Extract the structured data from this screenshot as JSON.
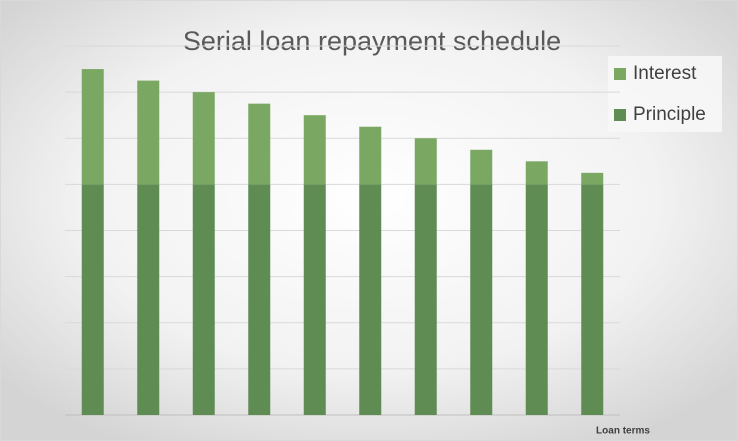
{
  "chart_data": {
    "type": "stacked_bar",
    "title": "Serial loan repayment schedule",
    "x_label": "Loan terms",
    "categories": [
      null,
      null,
      null,
      null,
      null,
      null,
      null,
      null,
      null,
      null
    ],
    "series": [
      {
        "name": "Principle",
        "color": "#5f8c52",
        "values": [
          5,
          5,
          5,
          5,
          5,
          5,
          5,
          5,
          5,
          5
        ]
      },
      {
        "name": "Interest",
        "color": "#7aa863",
        "values": [
          2.5,
          2.25,
          2.0,
          1.75,
          1.5,
          1.25,
          1.0,
          0.75,
          0.5,
          0.25
        ]
      }
    ],
    "ylim": [
      0,
      8
    ],
    "yticks": [
      0,
      1,
      2,
      3,
      4,
      5,
      6,
      7,
      8
    ],
    "grid": true,
    "legend": "top-right"
  }
}
